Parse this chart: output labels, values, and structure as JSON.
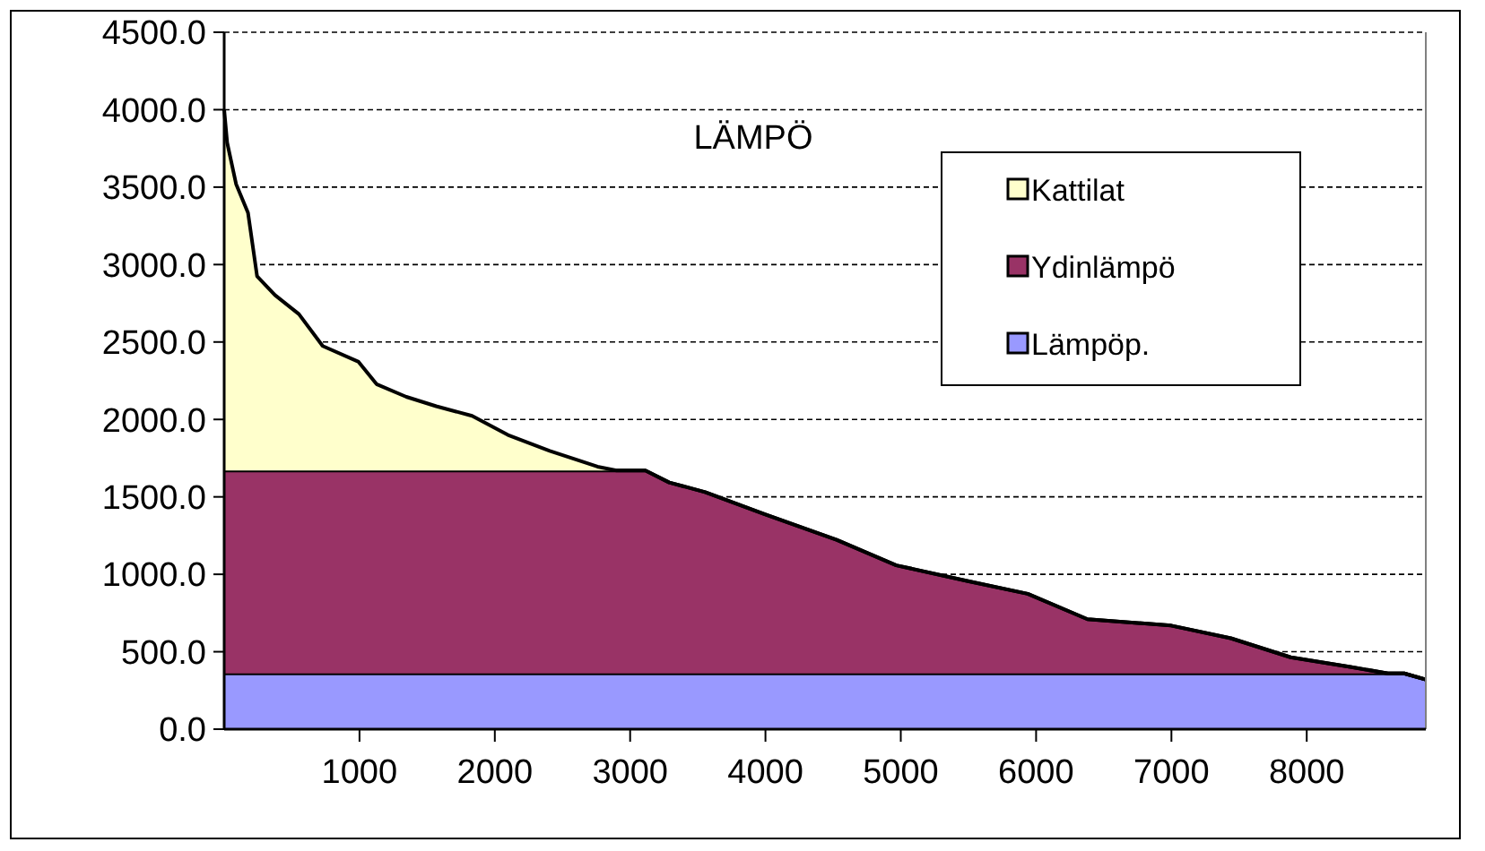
{
  "chart_data": {
    "type": "area",
    "title": "LÄMPÖ",
    "stacked": true,
    "x": [
      0,
      22,
      88,
      176,
      243,
      375,
      552,
      728,
      993,
      1126,
      1346,
      1567,
      1832,
      2097,
      2406,
      2759,
      2900,
      3113,
      3289,
      3554,
      3996,
      4526,
      4967,
      5497,
      5938,
      6380,
      6998,
      7439,
      7881,
      8322,
      8600,
      8720,
      8880
    ],
    "series": [
      {
        "name": "Lämpöp.",
        "color": "#9999ff",
        "values": [
          360,
          360,
          360,
          360,
          360,
          360,
          360,
          360,
          360,
          360,
          360,
          360,
          360,
          360,
          360,
          360,
          360,
          360,
          360,
          360,
          360,
          360,
          360,
          360,
          360,
          360,
          360,
          360,
          360,
          360,
          360,
          360,
          320
        ]
      },
      {
        "name": "Ydinlämpö",
        "color": "#993366",
        "values": [
          1310,
          1310,
          1310,
          1310,
          1310,
          1310,
          1310,
          1310,
          1310,
          1310,
          1310,
          1310,
          1310,
          1310,
          1310,
          1310,
          1310,
          1310,
          1233,
          1171,
          1027,
          863,
          698,
          596,
          514,
          350,
          309,
          227,
          104,
          42,
          0,
          0,
          0
        ]
      },
      {
        "name": "Kattilat",
        "color": "#ffffcc",
        "values": [
          2330,
          2117,
          1850,
          1665,
          1255,
          1133,
          1010,
          804,
          702,
          558,
          476,
          415,
          353,
          230,
          127,
          25,
          0,
          0,
          0,
          0,
          0,
          0,
          0,
          0,
          0,
          0,
          0,
          0,
          0,
          0,
          0,
          0,
          0
        ]
      }
    ],
    "xlim": [
      0,
      8880
    ],
    "xticks": [
      1000,
      2000,
      3000,
      4000,
      5000,
      6000,
      7000,
      8000
    ],
    "ylim": [
      0,
      4500
    ],
    "yticks": [
      {
        "value": 0,
        "label": "0.0"
      },
      {
        "value": 500,
        "label": "500.0"
      },
      {
        "value": 1000,
        "label": "1000.0"
      },
      {
        "value": 1500,
        "label": "1500.0"
      },
      {
        "value": 2000,
        "label": "2000.0"
      },
      {
        "value": 2500,
        "label": "2500.0"
      },
      {
        "value": 3000,
        "label": "3000.0"
      },
      {
        "value": 3500,
        "label": "3500.0"
      },
      {
        "value": 4000,
        "label": "4000.0"
      },
      {
        "value": 4500,
        "label": "4500.0"
      }
    ],
    "grid": "y",
    "legend": "top right"
  }
}
